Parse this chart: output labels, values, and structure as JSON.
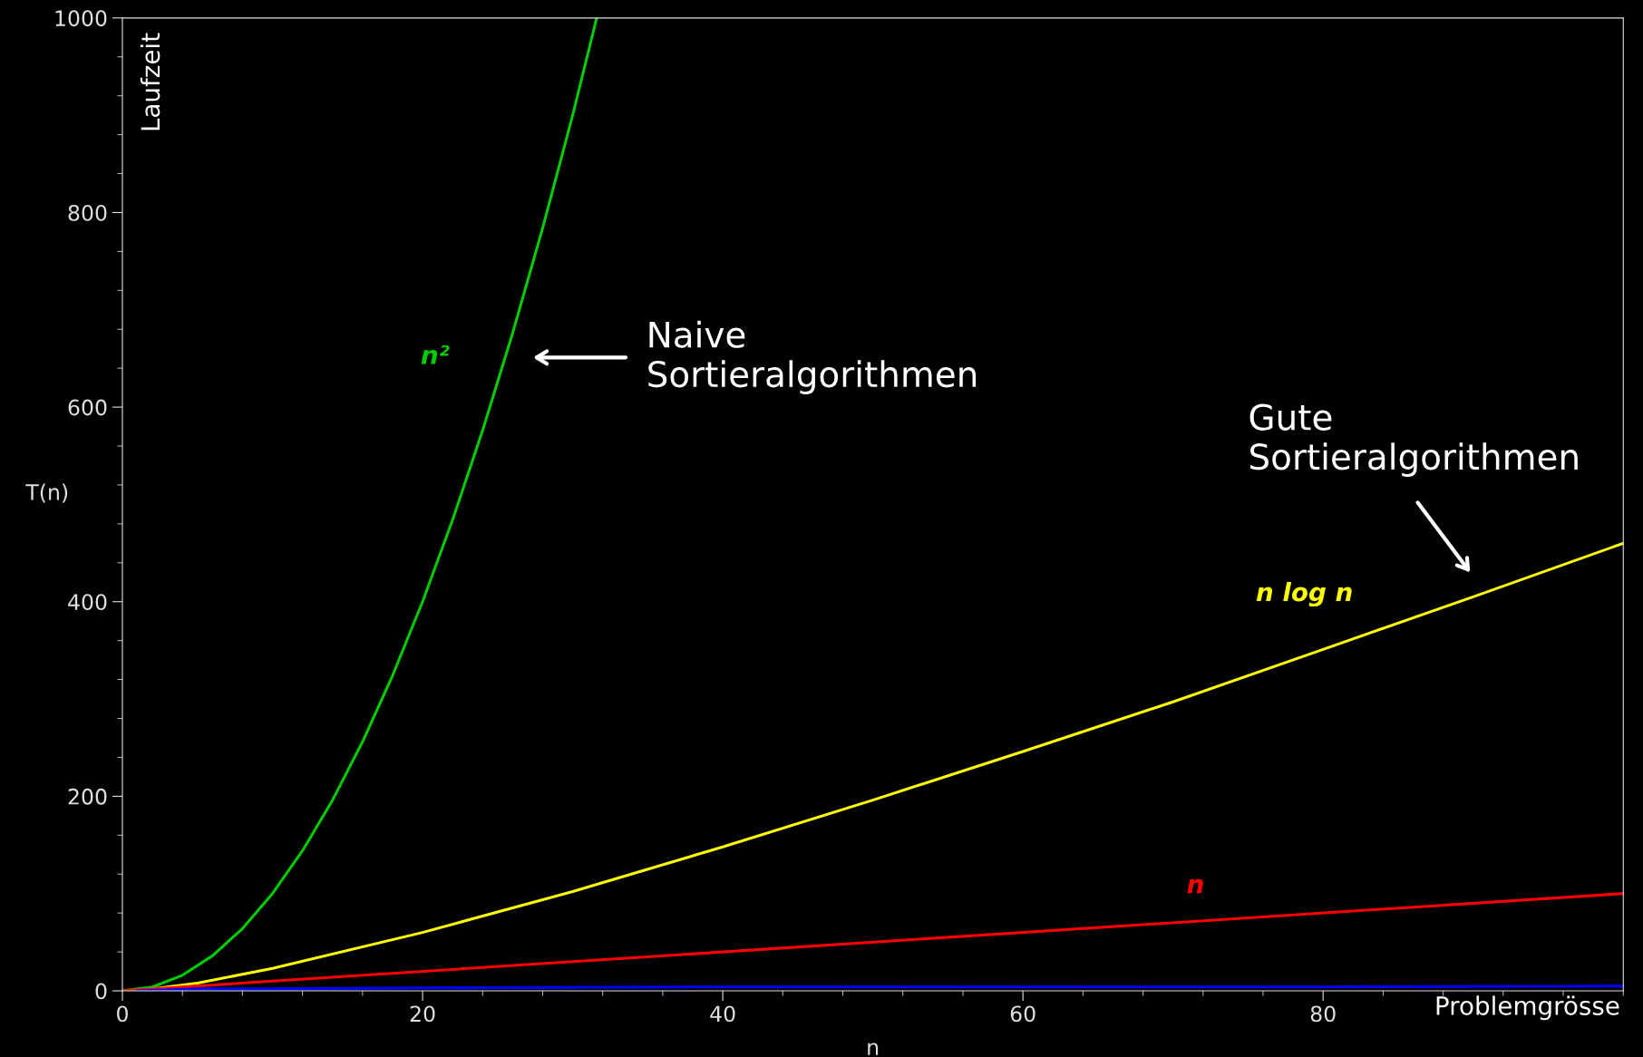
{
  "chart_data": {
    "type": "line",
    "xlabel": "n",
    "ylabel": "T(n)",
    "xlim": [
      0,
      100
    ],
    "ylim": [
      0,
      1000
    ],
    "xticks": [
      0,
      20,
      40,
      60,
      80
    ],
    "yticks": [
      0,
      200,
      400,
      600,
      800,
      1000
    ],
    "grid": false,
    "legend": false,
    "marker": "none",
    "line_style": "solid",
    "series": [
      {
        "name": "n²",
        "color": "#00cc00",
        "x": [
          0,
          2,
          4,
          6,
          8,
          10,
          12,
          14,
          16,
          18,
          20,
          22,
          24,
          26,
          28,
          30,
          31.6
        ],
        "values": [
          0,
          4,
          16,
          36,
          64,
          100,
          144,
          196,
          256,
          324,
          400,
          484,
          576,
          676,
          784,
          900,
          1000
        ]
      },
      {
        "name": "n log n",
        "color": "#ffff00",
        "x": [
          1,
          5,
          10,
          20,
          30,
          40,
          50,
          60,
          70,
          80,
          90,
          100
        ],
        "values": [
          0,
          8,
          23,
          60,
          102,
          148,
          196,
          246,
          297,
          351,
          405,
          460
        ]
      },
      {
        "name": "n",
        "color": "#ff0000",
        "x": [
          0,
          100
        ],
        "values": [
          0,
          100
        ]
      },
      {
        "color": "#0000ff",
        "x": [
          1,
          5,
          10,
          20,
          40,
          60,
          80,
          100
        ],
        "values": [
          0,
          2,
          2,
          3,
          4,
          4,
          4,
          5
        ]
      }
    ],
    "annotations": [
      "Naive\nSortieralgorithmen",
      "Gute\nSortieralgorithmen",
      "Laufzeit",
      "Problemgrösse"
    ]
  }
}
